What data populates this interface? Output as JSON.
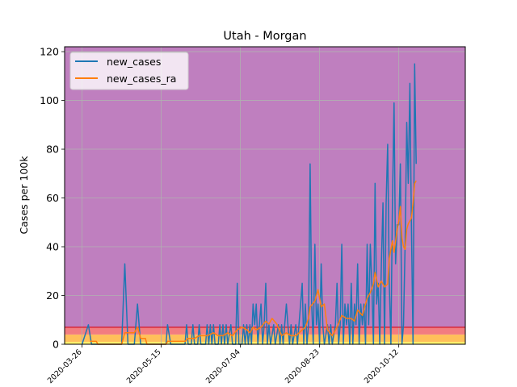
{
  "chart_data": {
    "type": "line",
    "title": "Utah - Morgan",
    "xlabel": "",
    "ylabel": "Cases per 100k",
    "xlim": [
      "2020-03-15",
      "2020-11-23"
    ],
    "ylim": [
      0,
      122
    ],
    "xticks": [
      "2020-03-26",
      "2020-05-15",
      "2020-07-04",
      "2020-08-23",
      "2020-10-12"
    ],
    "yticks": [
      0,
      20,
      40,
      60,
      80,
      100,
      120
    ],
    "grid": true,
    "legend_position": "top-left",
    "background_bands": [
      {
        "from": 0,
        "to": 1,
        "color": "#fef06e"
      },
      {
        "from": 1,
        "to": 4,
        "color": "#ffc05a"
      },
      {
        "from": 4,
        "to": 7,
        "color": "#f27d80"
      },
      {
        "from": 7,
        "to": 122,
        "color": "#bf7fbf"
      }
    ],
    "threshold_line": {
      "y": 7,
      "color": "#d62839"
    },
    "series": [
      {
        "name": "new_cases",
        "color": "#1f77b4",
        "points": [
          [
            "2020-03-26",
            0
          ],
          [
            "2020-03-30",
            8
          ],
          [
            "2020-04-01",
            0
          ],
          [
            "2020-04-20",
            0
          ],
          [
            "2020-04-22",
            33
          ],
          [
            "2020-04-24",
            0
          ],
          [
            "2020-04-28",
            0
          ],
          [
            "2020-04-30",
            16.5
          ],
          [
            "2020-05-02",
            0
          ],
          [
            "2020-05-18",
            0
          ],
          [
            "2020-05-19",
            8
          ],
          [
            "2020-05-21",
            0
          ],
          [
            "2020-05-30",
            0
          ],
          [
            "2020-05-31",
            8
          ],
          [
            "2020-06-01",
            0
          ],
          [
            "2020-06-03",
            0
          ],
          [
            "2020-06-04",
            8
          ],
          [
            "2020-06-05",
            0
          ],
          [
            "2020-06-07",
            0
          ],
          [
            "2020-06-08",
            8
          ],
          [
            "2020-06-09",
            0
          ],
          [
            "2020-06-12",
            0
          ],
          [
            "2020-06-13",
            8
          ],
          [
            "2020-06-14",
            0
          ],
          [
            "2020-06-15",
            8
          ],
          [
            "2020-06-16",
            0
          ],
          [
            "2020-06-17",
            8
          ],
          [
            "2020-06-18",
            0
          ],
          [
            "2020-06-20",
            0
          ],
          [
            "2020-06-21",
            8
          ],
          [
            "2020-06-22",
            0
          ],
          [
            "2020-06-23",
            8
          ],
          [
            "2020-06-24",
            0
          ],
          [
            "2020-06-25",
            8
          ],
          [
            "2020-06-26",
            0
          ],
          [
            "2020-06-28",
            8
          ],
          [
            "2020-06-29",
            0
          ],
          [
            "2020-07-01",
            0
          ],
          [
            "2020-07-02",
            25
          ],
          [
            "2020-07-03",
            0
          ],
          [
            "2020-07-05",
            0
          ],
          [
            "2020-07-06",
            8
          ],
          [
            "2020-07-07",
            0
          ],
          [
            "2020-07-08",
            8
          ],
          [
            "2020-07-09",
            0
          ],
          [
            "2020-07-10",
            8
          ],
          [
            "2020-07-11",
            0
          ],
          [
            "2020-07-12",
            16.5
          ],
          [
            "2020-07-13",
            8
          ],
          [
            "2020-07-14",
            16.5
          ],
          [
            "2020-07-15",
            0
          ],
          [
            "2020-07-16",
            8
          ],
          [
            "2020-07-17",
            16.5
          ],
          [
            "2020-07-18",
            0
          ],
          [
            "2020-07-19",
            8
          ],
          [
            "2020-07-20",
            25
          ],
          [
            "2020-07-21",
            0
          ],
          [
            "2020-07-22",
            8
          ],
          [
            "2020-07-23",
            0
          ],
          [
            "2020-07-25",
            8
          ],
          [
            "2020-07-26",
            0
          ],
          [
            "2020-07-28",
            8
          ],
          [
            "2020-07-29",
            0
          ],
          [
            "2020-07-30",
            8
          ],
          [
            "2020-07-31",
            0
          ],
          [
            "2020-08-02",
            16.5
          ],
          [
            "2020-08-03",
            8
          ],
          [
            "2020-08-04",
            0
          ],
          [
            "2020-08-05",
            8
          ],
          [
            "2020-08-06",
            0
          ],
          [
            "2020-08-08",
            8
          ],
          [
            "2020-08-09",
            0
          ],
          [
            "2020-08-12",
            25
          ],
          [
            "2020-08-13",
            0
          ],
          [
            "2020-08-14",
            16.5
          ],
          [
            "2020-08-15",
            0
          ],
          [
            "2020-08-16",
            8
          ],
          [
            "2020-08-17",
            74
          ],
          [
            "2020-08-18",
            16.5
          ],
          [
            "2020-08-19",
            0
          ],
          [
            "2020-08-20",
            41
          ],
          [
            "2020-08-21",
            8
          ],
          [
            "2020-08-22",
            16.5
          ],
          [
            "2020-08-23",
            0
          ],
          [
            "2020-08-24",
            33
          ],
          [
            "2020-08-25",
            8
          ],
          [
            "2020-08-26",
            0
          ],
          [
            "2020-08-28",
            8
          ],
          [
            "2020-08-29",
            0
          ],
          [
            "2020-08-30",
            8
          ],
          [
            "2020-08-31",
            0
          ],
          [
            "2020-09-02",
            8
          ],
          [
            "2020-09-03",
            25
          ],
          [
            "2020-09-04",
            0
          ],
          [
            "2020-09-05",
            8
          ],
          [
            "2020-09-06",
            41
          ],
          [
            "2020-09-07",
            0
          ],
          [
            "2020-09-08",
            16.5
          ],
          [
            "2020-09-09",
            8
          ],
          [
            "2020-09-10",
            16.5
          ],
          [
            "2020-09-11",
            0
          ],
          [
            "2020-09-12",
            25
          ],
          [
            "2020-09-13",
            0
          ],
          [
            "2020-09-14",
            16.5
          ],
          [
            "2020-09-15",
            8
          ],
          [
            "2020-09-16",
            33
          ],
          [
            "2020-09-17",
            0
          ],
          [
            "2020-09-18",
            16.5
          ],
          [
            "2020-09-19",
            8
          ],
          [
            "2020-09-20",
            16.5
          ],
          [
            "2020-09-21",
            0
          ],
          [
            "2020-09-22",
            41
          ],
          [
            "2020-09-23",
            8
          ],
          [
            "2020-09-24",
            41
          ],
          [
            "2020-09-25",
            25
          ],
          [
            "2020-09-26",
            0
          ],
          [
            "2020-09-27",
            66
          ],
          [
            "2020-09-28",
            16.5
          ],
          [
            "2020-09-29",
            25
          ],
          [
            "2020-09-30",
            0
          ],
          [
            "2020-10-01",
            33
          ],
          [
            "2020-10-02",
            58
          ],
          [
            "2020-10-03",
            0
          ],
          [
            "2020-10-04",
            58
          ],
          [
            "2020-10-05",
            82
          ],
          [
            "2020-10-06",
            25
          ],
          [
            "2020-10-07",
            0
          ],
          [
            "2020-10-08",
            58
          ],
          [
            "2020-10-09",
            99
          ],
          [
            "2020-10-10",
            33
          ],
          [
            "2020-10-11",
            49
          ],
          [
            "2020-10-12",
            49
          ],
          [
            "2020-10-13",
            74
          ],
          [
            "2020-10-14",
            0
          ],
          [
            "2020-10-15",
            8
          ],
          [
            "2020-10-16",
            41
          ],
          [
            "2020-10-17",
            91
          ],
          [
            "2020-10-18",
            66
          ],
          [
            "2020-10-19",
            107
          ],
          [
            "2020-10-20",
            49
          ],
          [
            "2020-10-21",
            0
          ],
          [
            "2020-10-22",
            115
          ],
          [
            "2020-10-23",
            74
          ]
        ]
      },
      {
        "name": "new_cases_ra",
        "color": "#ff7f0e",
        "points": [
          [
            "2020-03-31",
            1.2
          ],
          [
            "2020-04-04",
            1.2
          ],
          [
            "2020-04-05",
            0
          ],
          [
            "2020-04-20",
            0
          ],
          [
            "2020-04-22",
            4.7
          ],
          [
            "2020-04-28",
            4.7
          ],
          [
            "2020-04-30",
            7
          ],
          [
            "2020-05-02",
            2.4
          ],
          [
            "2020-05-05",
            2.4
          ],
          [
            "2020-05-06",
            0
          ],
          [
            "2020-05-18",
            0
          ],
          [
            "2020-05-19",
            1.2
          ],
          [
            "2020-05-30",
            1.2
          ],
          [
            "2020-06-01",
            2.4
          ],
          [
            "2020-06-05",
            2.4
          ],
          [
            "2020-06-08",
            3.5
          ],
          [
            "2020-06-13",
            3.5
          ],
          [
            "2020-06-17",
            4.7
          ],
          [
            "2020-06-20",
            3.5
          ],
          [
            "2020-06-23",
            3.5
          ],
          [
            "2020-06-26",
            4.7
          ],
          [
            "2020-06-29",
            3.5
          ],
          [
            "2020-07-02",
            6
          ],
          [
            "2020-07-05",
            7
          ],
          [
            "2020-07-08",
            6
          ],
          [
            "2020-07-10",
            4.7
          ],
          [
            "2020-07-12",
            7
          ],
          [
            "2020-07-14",
            5.9
          ],
          [
            "2020-07-17",
            7
          ],
          [
            "2020-07-20",
            9.5
          ],
          [
            "2020-07-22",
            8.3
          ],
          [
            "2020-07-24",
            10.6
          ],
          [
            "2020-07-27",
            8.3
          ],
          [
            "2020-07-30",
            3.5
          ],
          [
            "2020-08-02",
            4.7
          ],
          [
            "2020-08-05",
            3.5
          ],
          [
            "2020-08-08",
            3.5
          ],
          [
            "2020-08-12",
            5.9
          ],
          [
            "2020-08-14",
            7
          ],
          [
            "2020-08-16",
            10.6
          ],
          [
            "2020-08-17",
            15.3
          ],
          [
            "2020-08-20",
            17.7
          ],
          [
            "2020-08-22",
            22.4
          ],
          [
            "2020-08-24",
            15.3
          ],
          [
            "2020-08-26",
            16.5
          ],
          [
            "2020-08-28",
            5.9
          ],
          [
            "2020-08-31",
            3.5
          ],
          [
            "2020-09-03",
            7
          ],
          [
            "2020-09-06",
            11.8
          ],
          [
            "2020-09-09",
            10.6
          ],
          [
            "2020-09-12",
            10.6
          ],
          [
            "2020-09-14",
            9.5
          ],
          [
            "2020-09-16",
            14.1
          ],
          [
            "2020-09-19",
            11.8
          ],
          [
            "2020-09-22",
            18.9
          ],
          [
            "2020-09-24",
            21.2
          ],
          [
            "2020-09-26",
            24.7
          ],
          [
            "2020-09-27",
            29.5
          ],
          [
            "2020-09-29",
            23.5
          ],
          [
            "2020-10-01",
            25.9
          ],
          [
            "2020-10-03",
            23.5
          ],
          [
            "2020-10-05",
            24.7
          ],
          [
            "2020-10-06",
            35.3
          ],
          [
            "2020-10-08",
            42.4
          ],
          [
            "2020-10-09",
            37.7
          ],
          [
            "2020-10-11",
            47.1
          ],
          [
            "2020-10-12",
            50.6
          ],
          [
            "2020-10-13",
            56.5
          ],
          [
            "2020-10-14",
            43.6
          ],
          [
            "2020-10-15",
            40
          ],
          [
            "2020-10-16",
            38.9
          ],
          [
            "2020-10-17",
            47.1
          ],
          [
            "2020-10-18",
            49.4
          ],
          [
            "2020-10-20",
            51.8
          ],
          [
            "2020-10-21",
            57.7
          ],
          [
            "2020-10-22",
            65.9
          ],
          [
            "2020-10-23",
            67.1
          ]
        ]
      }
    ]
  }
}
